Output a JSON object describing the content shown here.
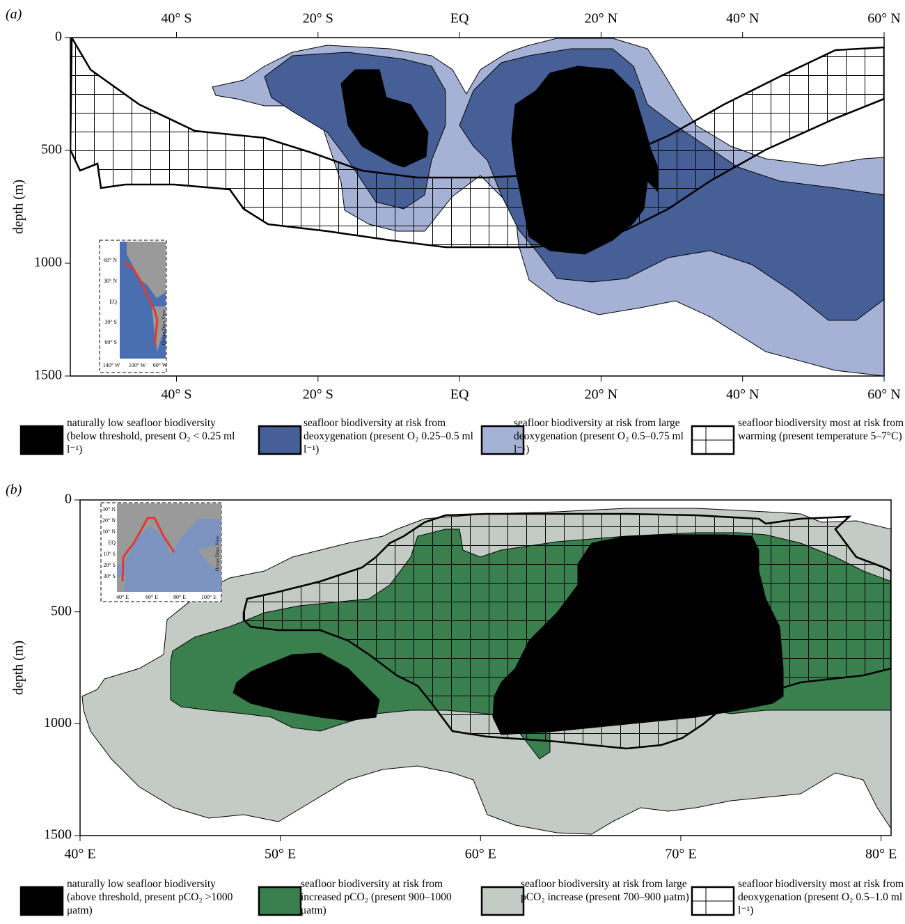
{
  "chart_data": [
    {
      "type": "region",
      "panel_label": "(a)",
      "ylabel": "depth (m)",
      "xlim": [
        -55,
        60
      ],
      "xticks": [
        {
          "value": -40,
          "label": "40° S"
        },
        {
          "value": -20,
          "label": "20° S"
        },
        {
          "value": 0,
          "label": "EQ"
        },
        {
          "value": 20,
          "label": "20° N"
        },
        {
          "value": 40,
          "label": "40° N"
        },
        {
          "value": 60,
          "label": "60° N"
        }
      ],
      "ylim": [
        0,
        1500
      ],
      "yticks": [
        0,
        500,
        1000,
        1500
      ],
      "y_inverted": true,
      "top_tick_labels": true,
      "series": [
        {
          "name": "naturally low seafloor biodiversity (below threshold, present O₂ < 0.25 ml l⁻¹)",
          "color": "#000000"
        },
        {
          "name": "seafloor biodiversity at risk from deoxygenation (present O₂ 0.25–0.5 ml l⁻¹)",
          "color": "#475f97"
        },
        {
          "name": "seafloor biodiversity at risk from large deoxygenation (present O₂ 0.5–0.75 ml l⁻¹)",
          "color": "#a6b2d5"
        },
        {
          "name": "seafloor biodiversity most at risk from warming (present temperature 5–7°C)",
          "color": "#ffffff",
          "hatch": true
        }
      ],
      "inset": {
        "lat_labels": [
          "60° N",
          "30° N",
          "EQ",
          "30° S",
          "60° S"
        ],
        "lon_labels": [
          "140° W",
          "100° W",
          "60° W"
        ],
        "credit": "Ocean Data View"
      }
    },
    {
      "type": "region",
      "panel_label": "(b)",
      "ylabel": "depth (m)",
      "xlim": [
        40,
        80.5
      ],
      "xticks": [
        {
          "value": 40,
          "label": "40° E"
        },
        {
          "value": 50,
          "label": "50° E"
        },
        {
          "value": 60,
          "label": "60° E"
        },
        {
          "value": 70,
          "label": "70° E"
        },
        {
          "value": 80,
          "label": "80° E"
        }
      ],
      "ylim": [
        0,
        1500
      ],
      "yticks": [
        0,
        500,
        1000,
        1500
      ],
      "y_inverted": true,
      "top_tick_labels": false,
      "series": [
        {
          "name": "naturally low seafloor biodiversity (above threshold, present pCO₂ >1000 μatm)",
          "color": "#000000"
        },
        {
          "name": "seafloor biodiversity at risk from increased pCO₂ (present 900–1000 μatm)",
          "color": "#3a804f"
        },
        {
          "name": "seafloor biodiversity at risk from large pCO₂ increase (present 700–900 μatm)",
          "color": "#c3cbc4"
        },
        {
          "name": "seafloor biodiversity most at risk from deoxygenation (present O₂ 0.5–1.0 ml l⁻¹)",
          "color": "#ffffff",
          "hatch": true
        }
      ],
      "inset": {
        "lat_labels": [
          "30° N",
          "20° N",
          "10° N",
          "EQ",
          "10° S",
          "20° S",
          "30° S"
        ],
        "lon_labels": [
          "40° E",
          "60° E",
          "80° E",
          "100° E"
        ],
        "credit": "Ocean Data View"
      }
    }
  ]
}
